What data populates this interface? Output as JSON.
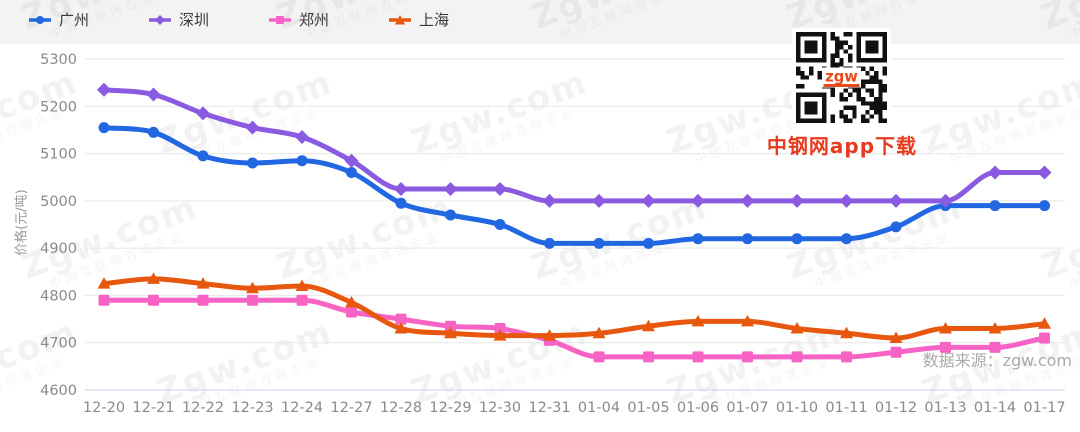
{
  "promo": {
    "app_download_label": "中钢网app下载",
    "qr_logo_text": "zgw"
  },
  "footer": {
    "source_note": "数据来源：zgw.com"
  },
  "watermark": {
    "line1": "Zgw.com",
    "line2": "中国互联网百强企业"
  },
  "chart_data": {
    "type": "line",
    "title": "",
    "xlabel": "",
    "ylabel": "价格(元/吨)",
    "ylim": [
      4600,
      5300
    ],
    "ytick_step": 100,
    "grid": true,
    "legend_position": "top-left",
    "axis_text_color": "#8a8a8a",
    "gridline_color": "#e7e7e7",
    "axisline_color": "#c9d6ea",
    "categories": [
      "12-20",
      "12-21",
      "12-22",
      "12-23",
      "12-24",
      "12-27",
      "12-28",
      "12-29",
      "12-30",
      "12-31",
      "01-04",
      "01-05",
      "01-06",
      "01-07",
      "01-10",
      "01-11",
      "01-12",
      "01-13",
      "01-14",
      "01-17"
    ],
    "series": [
      {
        "name": "广州",
        "key": "guangzhou",
        "color": "#2267E2",
        "symbol": "circle",
        "values": [
          5155,
          5145,
          5095,
          5080,
          5085,
          5060,
          4995,
          4970,
          4950,
          4910,
          4910,
          4910,
          4920,
          4920,
          4920,
          4920,
          4945,
          4990,
          4990,
          4990
        ]
      },
      {
        "name": "深圳",
        "key": "shenzhen",
        "color": "#8A5BE0",
        "symbol": "diamond",
        "values": [
          5235,
          5225,
          5185,
          5155,
          5135,
          5085,
          5025,
          5025,
          5025,
          5000,
          5000,
          5000,
          5000,
          5000,
          5000,
          5000,
          5000,
          5000,
          5060,
          5060
        ]
      },
      {
        "name": "郑州",
        "key": "zhengzhou",
        "color": "#F763C5",
        "symbol": "square",
        "values": [
          4790,
          4790,
          4790,
          4790,
          4790,
          4765,
          4750,
          4735,
          4730,
          4705,
          4670,
          4670,
          4670,
          4670,
          4670,
          4670,
          4680,
          4690,
          4690,
          4710
        ]
      },
      {
        "name": "上海",
        "key": "shanghai",
        "color": "#E7570E",
        "symbol": "triangle",
        "values": [
          4825,
          4835,
          4825,
          4815,
          4820,
          4785,
          4730,
          4720,
          4715,
          4715,
          4720,
          4735,
          4745,
          4745,
          4730,
          4720,
          4710,
          4730,
          4730,
          4740
        ]
      }
    ]
  }
}
